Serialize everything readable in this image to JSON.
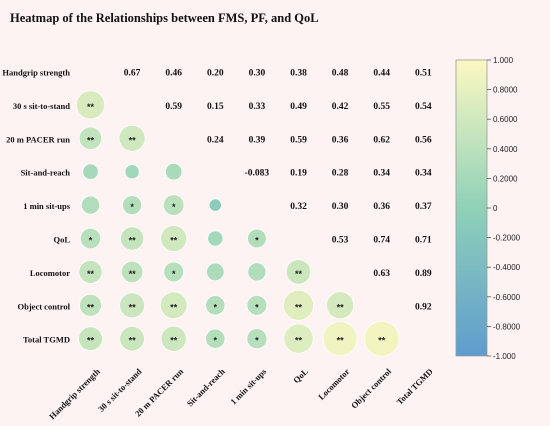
{
  "chart_data": {
    "type": "heatmap",
    "title": "Heatmap of the Relationships between FMS, PF, and QoL",
    "variables": [
      "Handgrip strength",
      "30 s sit-to-stand",
      "20 m PACER run",
      "Sit-and-reach",
      "1 min sit-ups",
      "QoL",
      "Locomotor",
      "Object control",
      "Total TGMD"
    ],
    "upper_triangle_values": [
      [
        "",
        "0.67",
        "0.46",
        "0.20",
        "0.30",
        "0.38",
        "0.48",
        "0.44",
        "0.51"
      ],
      [
        "",
        "",
        "0.59",
        "0.15",
        "0.33",
        "0.49",
        "0.42",
        "0.55",
        "0.54"
      ],
      [
        "",
        "",
        "",
        "0.24",
        "0.39",
        "0.59",
        "0.36",
        "0.62",
        "0.56"
      ],
      [
        "",
        "",
        "",
        "",
        "-0.083",
        "0.19",
        "0.28",
        "0.34",
        "0.34"
      ],
      [
        "",
        "",
        "",
        "",
        "",
        "0.32",
        "0.30",
        "0.36",
        "0.37"
      ],
      [
        "",
        "",
        "",
        "",
        "",
        "",
        "0.53",
        "0.74",
        "0.71"
      ],
      [
        "",
        "",
        "",
        "",
        "",
        "",
        "",
        "0.63",
        "0.89"
      ],
      [
        "",
        "",
        "",
        "",
        "",
        "",
        "",
        "",
        "0.92"
      ],
      [
        "",
        "",
        "",
        "",
        "",
        "",
        "",
        "",
        ""
      ]
    ],
    "lower_triangle_significance": [
      [
        "",
        "",
        "",
        "",
        "",
        "",
        "",
        "",
        ""
      ],
      [
        "**",
        "",
        "",
        "",
        "",
        "",
        "",
        "",
        ""
      ],
      [
        "**",
        "**",
        "",
        "",
        "",
        "",
        "",
        "",
        ""
      ],
      [
        "",
        "",
        "",
        "",
        "",
        "",
        "",
        "",
        ""
      ],
      [
        "",
        "*",
        "*",
        "",
        "",
        "",
        "",
        "",
        ""
      ],
      [
        "*",
        "**",
        "**",
        "",
        "*",
        "",
        "",
        "",
        ""
      ],
      [
        "**",
        "**",
        "*",
        "",
        "",
        "**",
        "",
        "",
        ""
      ],
      [
        "**",
        "**",
        "**",
        "*",
        "*",
        "**",
        "**",
        "",
        ""
      ],
      [
        "**",
        "**",
        "**",
        "*",
        "*",
        "**",
        "**",
        "**",
        ""
      ]
    ],
    "colorbar": {
      "min": -1.0,
      "max": 1.0,
      "ticks": [
        "1.000",
        "0.8000",
        "0.6000",
        "0.4000",
        "0.2000",
        "0",
        "-0.2000",
        "-0.4000",
        "-0.6000",
        "-0.8000",
        "-1.000"
      ],
      "colors": {
        "high": "#fcf8c2",
        "mid": "#8fd1b8",
        "low": "#5f9ccf"
      }
    }
  }
}
